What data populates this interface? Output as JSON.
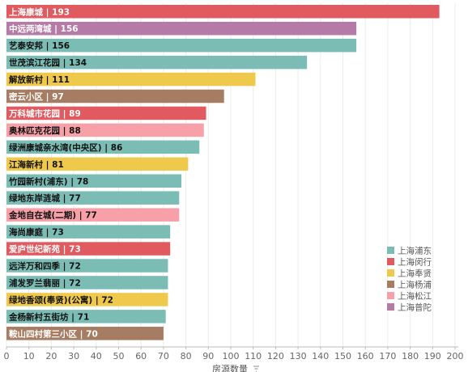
{
  "chart_data": {
    "type": "bar",
    "orientation": "horizontal",
    "xlabel": "房源数量",
    "xlim": [
      0,
      200
    ],
    "xticks": [
      0,
      10,
      20,
      30,
      40,
      50,
      60,
      70,
      80,
      90,
      100,
      110,
      120,
      130,
      140,
      150,
      160,
      170,
      180,
      190,
      200
    ],
    "grid": true,
    "legend_position": "bottom-right",
    "categories": [
      "上海康城",
      "中远两湾城",
      "艺泰安邦",
      "世茂滨江花园",
      "解放新村",
      "密云小区",
      "万科城市花园",
      "奥林匹克花园",
      "绿洲康城亲水湾(中央区)",
      "江海新村",
      "竹园新村(浦东)",
      "绿地东岸涟城",
      "金地自在城(二期)",
      "海尚康庭",
      "爱庐世纪新苑",
      "远洋万和四季",
      "浦发罗兰翡丽",
      "绿地香颂(奉贤)(公寓)",
      "金杨新村五街坊",
      "鞍山四村第三小区"
    ],
    "values": [
      193,
      156,
      156,
      134,
      111,
      97,
      89,
      88,
      86,
      81,
      78,
      77,
      77,
      73,
      73,
      72,
      72,
      72,
      71,
      70
    ],
    "bar_labels": [
      "上海康城 | 193",
      "中远两湾城 | 156",
      "艺泰安邦 | 156",
      "世茂滨江花园 | 134",
      "解放新村 | 111",
      "密云小区 | 97",
      "万科城市花园 | 89",
      "奥林匹克花园 | 88",
      "绿洲康城亲水湾(中央区) | 86",
      "江海新村 | 81",
      "竹园新村(浦东) | 78",
      "绿地东岸涟城 | 77",
      "金地自在城(二期) | 77",
      "海尚康庭 | 73",
      "爱庐世纪新苑 | 73",
      "远洋万和四季 | 72",
      "浦发罗兰翡丽 | 72",
      "绿地香颂(奉贤)(公寓) | 72",
      "金杨新村五街坊 | 71",
      "鞍山四村第三小区 | 70"
    ],
    "districts": [
      "上海闵行",
      "上海普陀",
      "上海浦东",
      "上海浦东",
      "上海奉贤",
      "上海杨浦",
      "上海闵行",
      "上海松江",
      "上海浦东",
      "上海奉贤",
      "上海浦东",
      "上海浦东",
      "上海松江",
      "上海浦东",
      "上海闵行",
      "上海浦东",
      "上海浦东",
      "上海奉贤",
      "上海浦东",
      "上海杨浦"
    ],
    "legend": [
      {
        "name": "上海浦东",
        "color": "#7bbcb4"
      },
      {
        "name": "上海闵行",
        "color": "#e05a60"
      },
      {
        "name": "上海奉贤",
        "color": "#efc94c"
      },
      {
        "name": "上海杨浦",
        "color": "#a67c62"
      },
      {
        "name": "上海松江",
        "color": "#f7a0a8"
      },
      {
        "name": "上海普陀",
        "color": "#b57ba6"
      }
    ],
    "label_colors": {
      "上海浦东": "#111111",
      "上海闵行": "#ffffff",
      "上海奉贤": "#111111",
      "上海杨浦": "#ffffff",
      "上海松江": "#111111",
      "上海普陀": "#ffffff"
    }
  }
}
